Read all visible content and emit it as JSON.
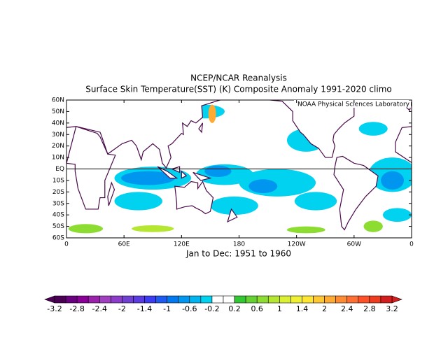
{
  "title": "NCEP/NCAR Reanalysis",
  "subtitle": "Surface Skin Temperature(SST) (K) Composite Anomaly 1991-2020 climo",
  "credit": "NOAA Physical Sciences Laboratory",
  "lat_labels": [
    "60N",
    "50N",
    "40N",
    "30N",
    "20N",
    "10N",
    "EQ",
    "10S",
    "20S",
    "30S",
    "40S",
    "50S",
    "60S"
  ],
  "lon_labels": [
    "0",
    "60E",
    "120E",
    "180",
    "120W",
    "60W",
    "0"
  ],
  "caption": "Jan to Dec: 1951 to 1960",
  "colorbar": {
    "labels": [
      "-3.2",
      "-2.8",
      "-2.4",
      "-2",
      "-1.4",
      "-1",
      "-0.6",
      "-0.2",
      "0.2",
      "0.6",
      "1",
      "1.4",
      "2",
      "2.4",
      "2.8",
      "3.2"
    ],
    "colors": [
      "#4b0055",
      "#6a0080",
      "#8a0096",
      "#9a22aa",
      "#a040c0",
      "#8c3cc8",
      "#7040d0",
      "#5a3ce0",
      "#3c3cf0",
      "#1e5af0",
      "#0078f0",
      "#0096f0",
      "#00b4f0",
      "#00d2f0",
      "#ffffff",
      "#ffffff",
      "#32c832",
      "#64d232",
      "#8cdc32",
      "#b4e632",
      "#dcf032",
      "#f0f032",
      "#ffe632",
      "#ffc832",
      "#ffaa32",
      "#ff8c32",
      "#ff6e32",
      "#ff5028",
      "#f03c1e",
      "#d21e1e"
    ]
  }
}
